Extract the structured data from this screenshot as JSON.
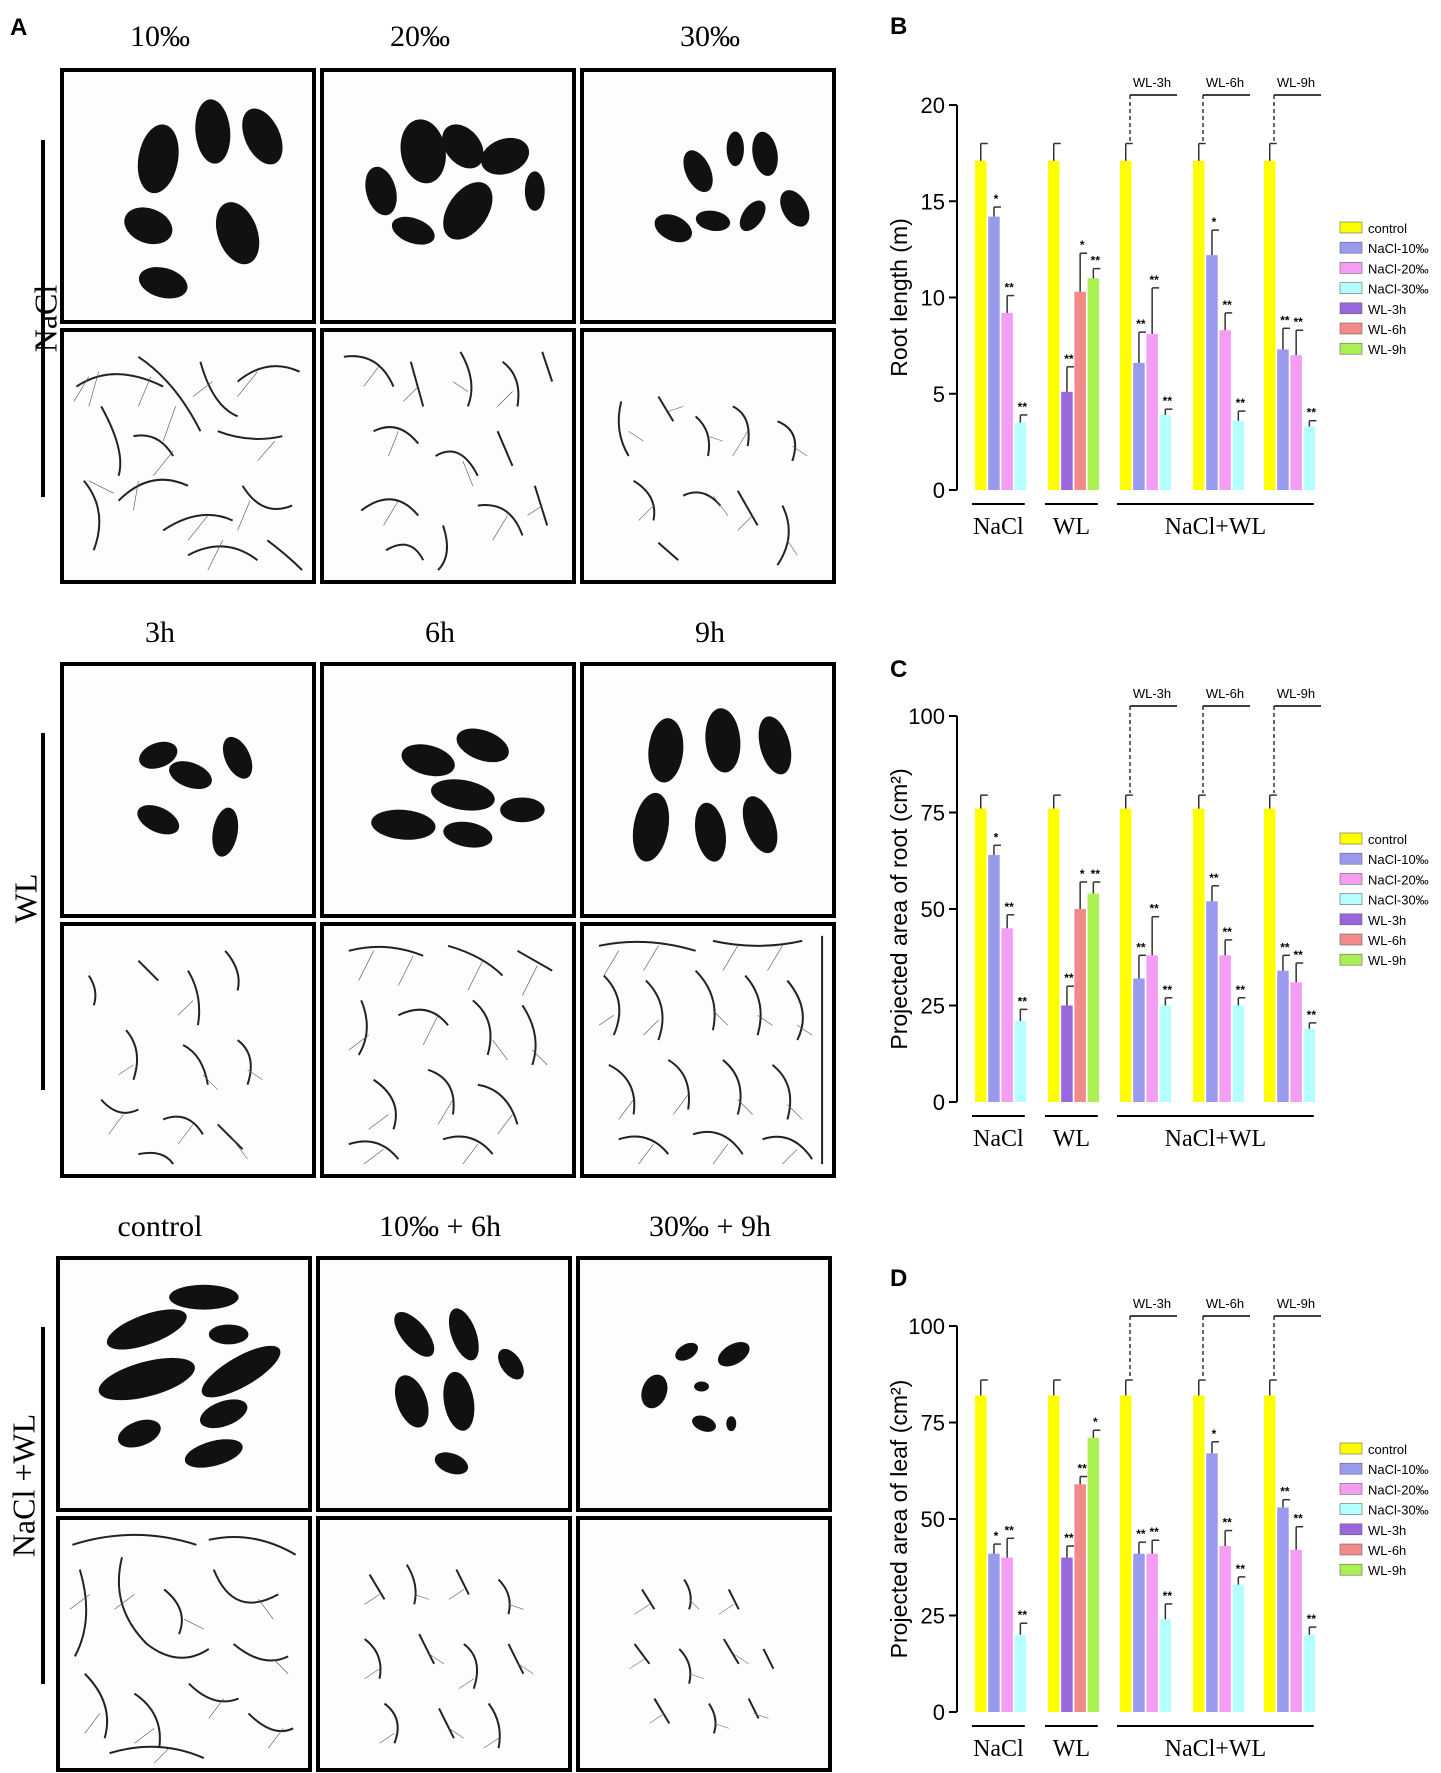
{
  "panel_a": {
    "letter": "A",
    "groups": [
      {
        "label": "NaCl",
        "columns": [
          "10‰",
          "20‰",
          "30‰"
        ]
      },
      {
        "label": "WL",
        "columns": [
          "3h",
          "6h",
          "9h"
        ]
      },
      {
        "label": "NaCl +WL",
        "columns": [
          "control",
          "10‰ + 6h",
          "30‰ + 9h"
        ]
      }
    ]
  },
  "chart_data": [
    {
      "panel": "B",
      "type": "bar",
      "ylabel": "Root length (m)",
      "ylim": [
        0,
        20
      ],
      "yticks": [
        "0",
        "5",
        "10",
        "15",
        "20"
      ],
      "group_labels": [
        "NaCl",
        "WL",
        "NaCl+WL"
      ],
      "subgroup_labels": [
        "WL-3h",
        "WL-6h",
        "WL-9h"
      ],
      "legend": [
        "control",
        "NaCl-10‰",
        "NaCl-20‰",
        "NaCl-30‰",
        "WL-3h",
        "WL-6h",
        "WL-9h"
      ],
      "colors": {
        "control": "#ffff00",
        "NaCl-10‰": "#9999ee",
        "NaCl-20‰": "#f49df4",
        "NaCl-30‰": "#b4ffff",
        "WL-3h": "#9966dd",
        "WL-6h": "#f28a8a",
        "WL-9h": "#aaf055"
      },
      "clusters": [
        {
          "bars": [
            {
              "s": "control",
              "v": 17.1,
              "e": 0.9,
              "sig": ""
            },
            {
              "s": "NaCl-10‰",
              "v": 14.2,
              "e": 0.5,
              "sig": "*"
            },
            {
              "s": "NaCl-20‰",
              "v": 9.2,
              "e": 0.9,
              "sig": "**"
            },
            {
              "s": "NaCl-30‰",
              "v": 3.5,
              "e": 0.4,
              "sig": "**"
            }
          ]
        },
        {
          "bars": [
            {
              "s": "control",
              "v": 17.1,
              "e": 0.9,
              "sig": ""
            },
            {
              "s": "WL-3h",
              "v": 5.1,
              "e": 1.3,
              "sig": "**"
            },
            {
              "s": "WL-6h",
              "v": 10.3,
              "e": 2.0,
              "sig": "*"
            },
            {
              "s": "WL-9h",
              "v": 11.0,
              "e": 0.5,
              "sig": "**"
            }
          ]
        },
        {
          "bars": [
            {
              "s": "control",
              "v": 17.1,
              "e": 0.9,
              "sig": ""
            },
            {
              "s": "NaCl-10‰",
              "v": 6.6,
              "e": 1.6,
              "sig": "**"
            },
            {
              "s": "NaCl-20‰",
              "v": 8.1,
              "e": 2.4,
              "sig": "**"
            },
            {
              "s": "NaCl-30‰",
              "v": 3.9,
              "e": 0.3,
              "sig": "**"
            }
          ]
        },
        {
          "bars": [
            {
              "s": "control",
              "v": 17.1,
              "e": 0.9,
              "sig": ""
            },
            {
              "s": "NaCl-10‰",
              "v": 12.2,
              "e": 1.3,
              "sig": "*"
            },
            {
              "s": "NaCl-20‰",
              "v": 8.3,
              "e": 0.9,
              "sig": "**"
            },
            {
              "s": "NaCl-30‰",
              "v": 3.6,
              "e": 0.5,
              "sig": "**"
            }
          ]
        },
        {
          "bars": [
            {
              "s": "control",
              "v": 17.1,
              "e": 0.9,
              "sig": ""
            },
            {
              "s": "NaCl-10‰",
              "v": 7.3,
              "e": 1.1,
              "sig": "**"
            },
            {
              "s": "NaCl-20‰",
              "v": 7.0,
              "e": 1.3,
              "sig": "**"
            },
            {
              "s": "NaCl-30‰",
              "v": 3.3,
              "e": 0.3,
              "sig": "**"
            }
          ]
        }
      ]
    },
    {
      "panel": "C",
      "type": "bar",
      "ylabel": "Projected area of root (cm²)",
      "ylim": [
        0,
        100
      ],
      "yticks": [
        "0",
        "25",
        "50",
        "75",
        "100"
      ],
      "group_labels": [
        "NaCl",
        "WL",
        "NaCl+WL"
      ],
      "subgroup_labels": [
        "WL-3h",
        "WL-6h",
        "WL-9h"
      ],
      "legend": [
        "control",
        "NaCl-10‰",
        "NaCl-20‰",
        "NaCl-30‰",
        "WL-3h",
        "WL-6h",
        "WL-9h"
      ],
      "colors": {
        "control": "#ffff00",
        "NaCl-10‰": "#9999ee",
        "NaCl-20‰": "#f49df4",
        "NaCl-30‰": "#b4ffff",
        "WL-3h": "#9966dd",
        "WL-6h": "#f28a8a",
        "WL-9h": "#aaf055"
      },
      "clusters": [
        {
          "bars": [
            {
              "s": "control",
              "v": 76,
              "e": 3.5,
              "sig": ""
            },
            {
              "s": "NaCl-10‰",
              "v": 64,
              "e": 2.5,
              "sig": "*"
            },
            {
              "s": "NaCl-20‰",
              "v": 45,
              "e": 3.5,
              "sig": "**"
            },
            {
              "s": "NaCl-30‰",
              "v": 21,
              "e": 3.0,
              "sig": "**"
            }
          ]
        },
        {
          "bars": [
            {
              "s": "control",
              "v": 76,
              "e": 3.5,
              "sig": ""
            },
            {
              "s": "WL-3h",
              "v": 25,
              "e": 5.0,
              "sig": "**"
            },
            {
              "s": "WL-6h",
              "v": 50,
              "e": 7.0,
              "sig": "*"
            },
            {
              "s": "WL-9h",
              "v": 54,
              "e": 3.0,
              "sig": "**"
            }
          ]
        },
        {
          "bars": [
            {
              "s": "control",
              "v": 76,
              "e": 3.5,
              "sig": ""
            },
            {
              "s": "NaCl-10‰",
              "v": 32,
              "e": 6.0,
              "sig": "**"
            },
            {
              "s": "NaCl-20‰",
              "v": 38,
              "e": 10.0,
              "sig": "**"
            },
            {
              "s": "NaCl-30‰",
              "v": 25,
              "e": 2.0,
              "sig": "**"
            }
          ]
        },
        {
          "bars": [
            {
              "s": "control",
              "v": 76,
              "e": 3.5,
              "sig": ""
            },
            {
              "s": "NaCl-10‰",
              "v": 52,
              "e": 4.0,
              "sig": "**"
            },
            {
              "s": "NaCl-20‰",
              "v": 38,
              "e": 4.0,
              "sig": "**"
            },
            {
              "s": "NaCl-30‰",
              "v": 25,
              "e": 2.0,
              "sig": "**"
            }
          ]
        },
        {
          "bars": [
            {
              "s": "control",
              "v": 76,
              "e": 3.5,
              "sig": ""
            },
            {
              "s": "NaCl-10‰",
              "v": 34,
              "e": 4.0,
              "sig": "**"
            },
            {
              "s": "NaCl-20‰",
              "v": 31,
              "e": 5.0,
              "sig": "**"
            },
            {
              "s": "NaCl-30‰",
              "v": 19,
              "e": 1.5,
              "sig": "**"
            }
          ]
        }
      ]
    },
    {
      "panel": "D",
      "type": "bar",
      "ylabel": "Projected area of leaf (cm²)",
      "ylim": [
        0,
        100
      ],
      "yticks": [
        "0",
        "25",
        "50",
        "75",
        "100"
      ],
      "group_labels": [
        "NaCl",
        "WL",
        "NaCl+WL"
      ],
      "subgroup_labels": [
        "WL-3h",
        "WL-6h",
        "WL-9h"
      ],
      "legend": [
        "control",
        "NaCl-10‰",
        "NaCl-20‰",
        "NaCl-30‰",
        "WL-3h",
        "WL-6h",
        "WL-9h"
      ],
      "colors": {
        "control": "#ffff00",
        "NaCl-10‰": "#9999ee",
        "NaCl-20‰": "#f49df4",
        "NaCl-30‰": "#b4ffff",
        "WL-3h": "#9966dd",
        "WL-6h": "#f28a8a",
        "WL-9h": "#aaf055"
      },
      "clusters": [
        {
          "bars": [
            {
              "s": "control",
              "v": 82,
              "e": 4.0,
              "sig": ""
            },
            {
              "s": "NaCl-10‰",
              "v": 41,
              "e": 2.5,
              "sig": "*"
            },
            {
              "s": "NaCl-20‰",
              "v": 40,
              "e": 5.0,
              "sig": "**"
            },
            {
              "s": "NaCl-30‰",
              "v": 20,
              "e": 3.0,
              "sig": "**"
            }
          ]
        },
        {
          "bars": [
            {
              "s": "control",
              "v": 82,
              "e": 4.0,
              "sig": ""
            },
            {
              "s": "WL-3h",
              "v": 40,
              "e": 3.0,
              "sig": "**"
            },
            {
              "s": "WL-6h",
              "v": 59,
              "e": 2.0,
              "sig": "**"
            },
            {
              "s": "WL-9h",
              "v": 71,
              "e": 2.0,
              "sig": "*"
            }
          ]
        },
        {
          "bars": [
            {
              "s": "control",
              "v": 82,
              "e": 4.0,
              "sig": ""
            },
            {
              "s": "NaCl-10‰",
              "v": 41,
              "e": 3.0,
              "sig": "**"
            },
            {
              "s": "NaCl-20‰",
              "v": 41,
              "e": 3.5,
              "sig": "**"
            },
            {
              "s": "NaCl-30‰",
              "v": 24,
              "e": 4.0,
              "sig": "**"
            }
          ]
        },
        {
          "bars": [
            {
              "s": "control",
              "v": 82,
              "e": 4.0,
              "sig": ""
            },
            {
              "s": "NaCl-10‰",
              "v": 67,
              "e": 3.0,
              "sig": "*"
            },
            {
              "s": "NaCl-20‰",
              "v": 43,
              "e": 4.0,
              "sig": "**"
            },
            {
              "s": "NaCl-30‰",
              "v": 33,
              "e": 2.0,
              "sig": "**"
            }
          ]
        },
        {
          "bars": [
            {
              "s": "control",
              "v": 82,
              "e": 4.0,
              "sig": ""
            },
            {
              "s": "NaCl-10‰",
              "v": 53,
              "e": 2.0,
              "sig": "**"
            },
            {
              "s": "NaCl-20‰",
              "v": 42,
              "e": 6.0,
              "sig": "**"
            },
            {
              "s": "NaCl-30‰",
              "v": 20,
              "e": 2.0,
              "sig": "**"
            }
          ]
        }
      ]
    }
  ]
}
